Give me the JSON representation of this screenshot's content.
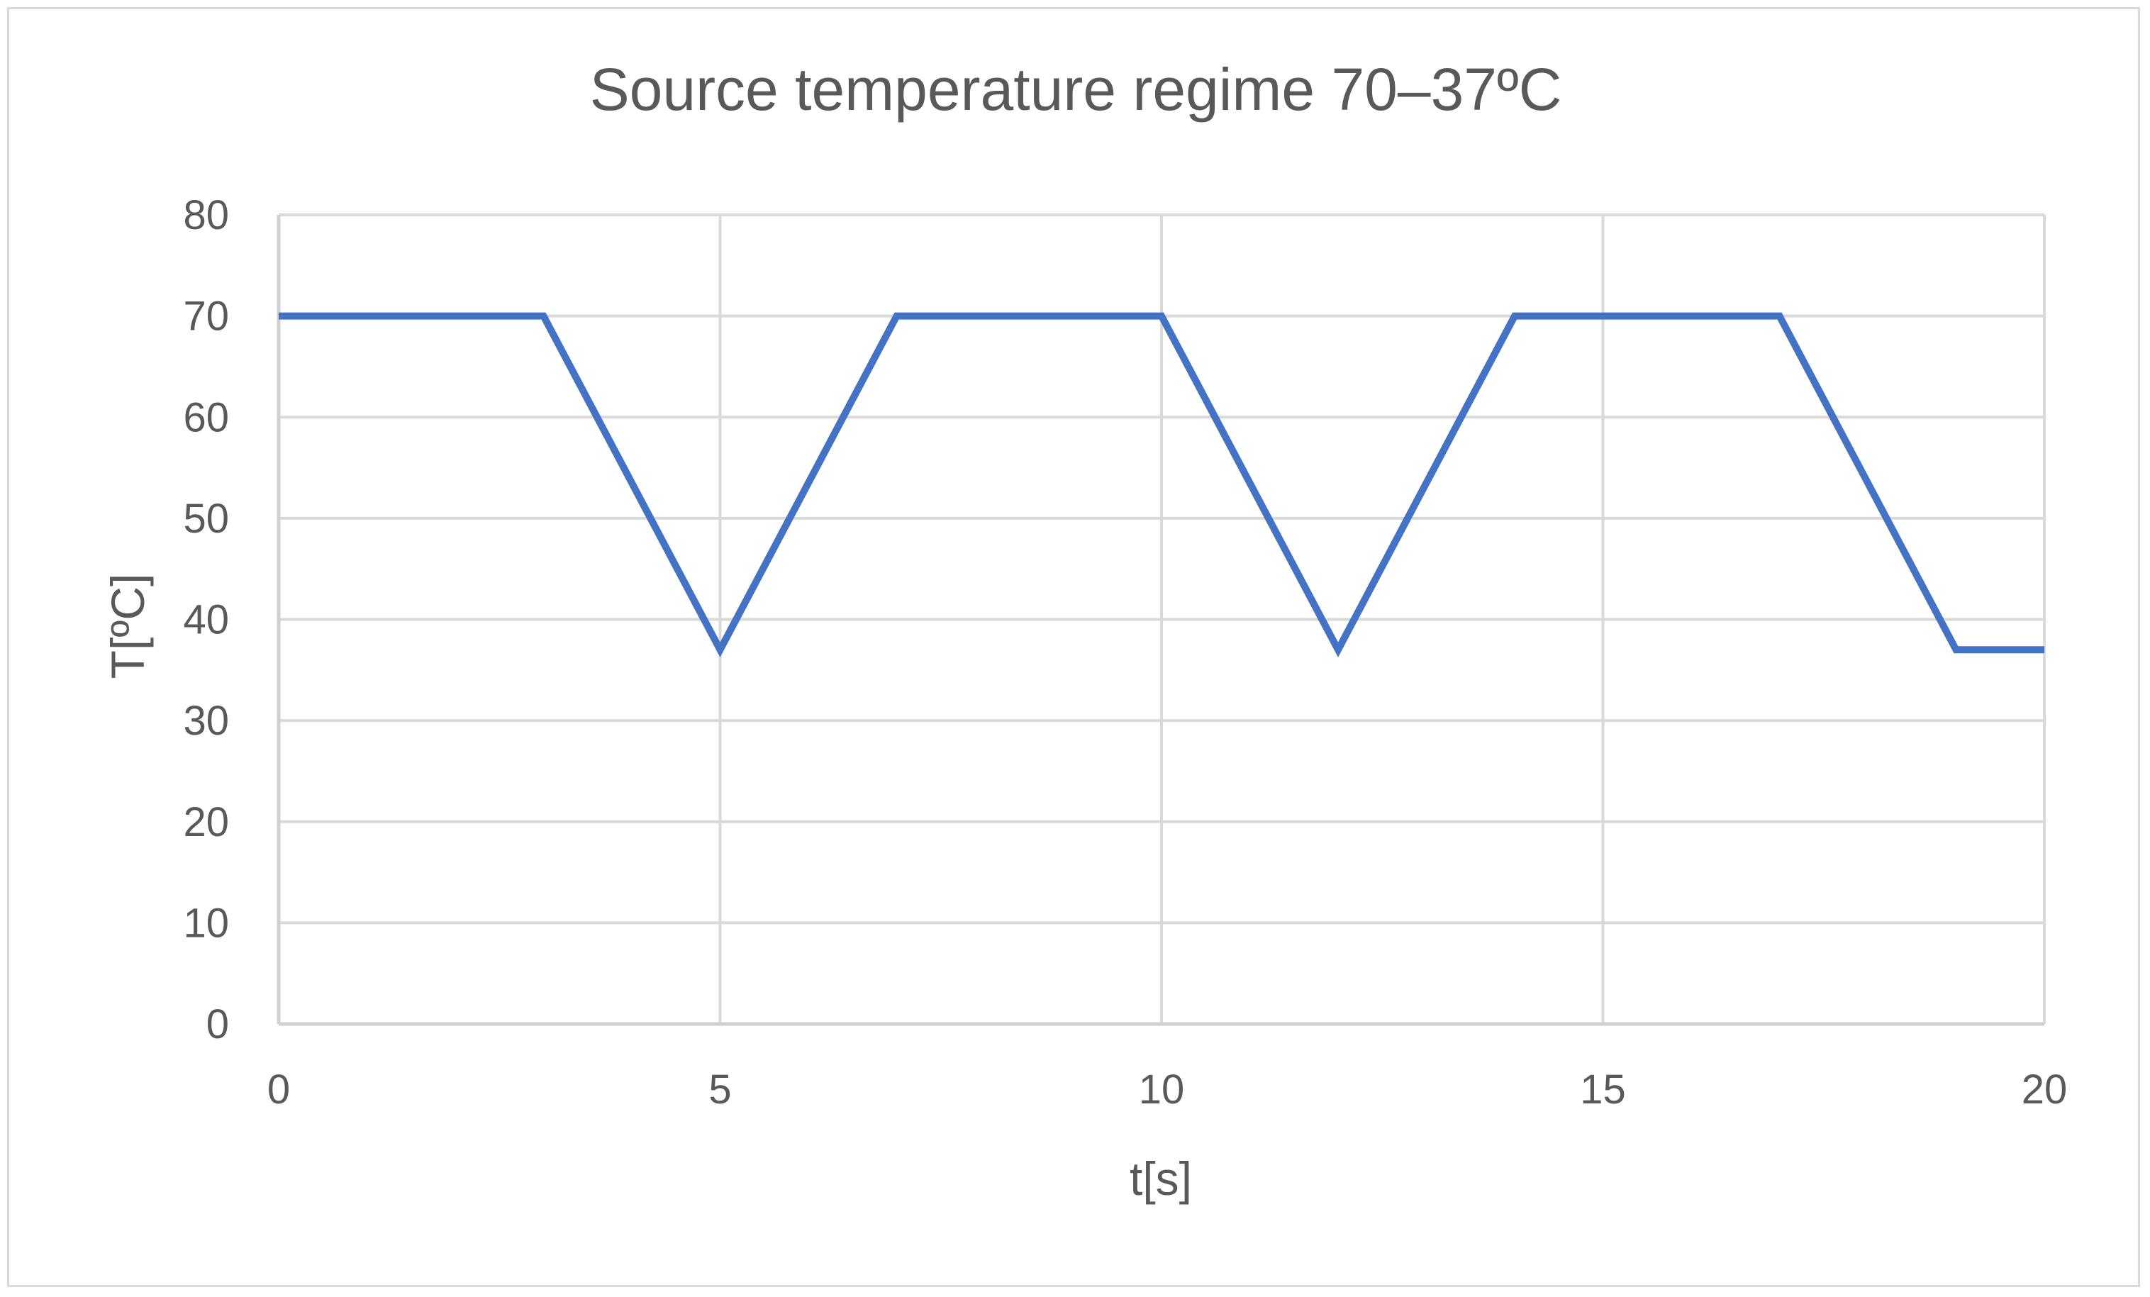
{
  "chart_data": {
    "type": "line",
    "title": "Source temperature regime 70–37ºC",
    "xlabel": "t[s]",
    "ylabel": "T[ºC]",
    "xlim": [
      0,
      20
    ],
    "ylim": [
      0,
      80
    ],
    "x_ticks": [
      0,
      5,
      10,
      15,
      20
    ],
    "y_ticks": [
      0,
      10,
      20,
      30,
      40,
      50,
      60,
      70,
      80
    ],
    "x_tick_labels": [
      "0",
      "5",
      "10",
      "15",
      "20"
    ],
    "y_tick_labels": [
      "0",
      "10",
      "20",
      "30",
      "40",
      "50",
      "60",
      "70",
      "80"
    ],
    "grid": true,
    "legend": "none",
    "series": [
      {
        "color": "#4472c4",
        "x": [
          0,
          3,
          5,
          7,
          10,
          12,
          14,
          17,
          19,
          20
        ],
        "y": [
          70,
          70,
          37,
          70,
          70,
          37,
          70,
          70,
          37,
          37
        ]
      }
    ]
  }
}
